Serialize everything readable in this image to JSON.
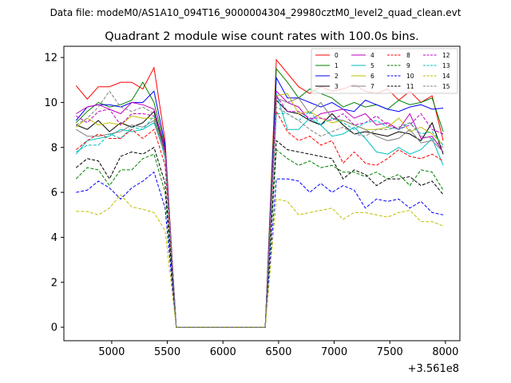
{
  "chart_data": {
    "type": "line",
    "suptitle": "Data file: modeM0/AS1A10_094T16_9000004304_29980cztM0_level2_quad_clean.evt",
    "title": "Quadrant 2 module wise count rates with 100.0s bins.",
    "xlabel": "",
    "ylabel": "",
    "x_offset_label": "+3.561e8",
    "xlim": [
      4570,
      8130
    ],
    "ylim": [
      -0.6,
      12.5
    ],
    "xticks": [
      5000,
      5500,
      6000,
      6500,
      7000,
      7500,
      8000
    ],
    "yticks": [
      0,
      2,
      4,
      6,
      8,
      10,
      12
    ],
    "legend_position": "top-right",
    "x": [
      4680,
      4780,
      4880,
      4980,
      5080,
      5180,
      5280,
      5380,
      5480,
      5580,
      5680,
      5780,
      5880,
      5980,
      6080,
      6180,
      6280,
      6380,
      6480,
      6580,
      6680,
      6780,
      6880,
      6980,
      7080,
      7180,
      7280,
      7380,
      7480,
      7580,
      7680,
      7780,
      7880,
      7980
    ],
    "series": [
      {
        "name": "0",
        "color": "#ff0000",
        "dash": "solid",
        "values": [
          10.75,
          10.15,
          10.7,
          10.7,
          10.9,
          10.9,
          10.6,
          11.55,
          8.3,
          0,
          0,
          0,
          0,
          0,
          0,
          0,
          0,
          0,
          11.9,
          11.3,
          10.7,
          10.4,
          10.7,
          10.5,
          10.6,
          10.8,
          10.5,
          10.4,
          10.6,
          10.1,
          10.5,
          10.0,
          10.3,
          8.3
        ]
      },
      {
        "name": "1",
        "color": "#008000",
        "dash": "solid",
        "values": [
          9.1,
          9.6,
          10.0,
          9.8,
          9.9,
          10.1,
          10.9,
          10.0,
          8.0,
          0,
          0,
          0,
          0,
          0,
          0,
          0,
          0,
          0,
          11.5,
          10.9,
          10.2,
          10.6,
          10.4,
          10.2,
          9.8,
          10.0,
          9.8,
          9.9,
          9.7,
          10.1,
          9.9,
          10.0,
          10.2,
          8.7
        ]
      },
      {
        "name": "2",
        "color": "#0000ff",
        "dash": "solid",
        "values": [
          9.2,
          9.8,
          9.9,
          9.9,
          9.8,
          10.0,
          10.0,
          10.5,
          8.1,
          0,
          0,
          0,
          0,
          0,
          0,
          0,
          0,
          0,
          11.1,
          10.2,
          10.2,
          10.0,
          9.8,
          10.0,
          9.7,
          9.6,
          10.1,
          9.9,
          9.7,
          9.6,
          9.8,
          9.9,
          9.7,
          9.75
        ]
      },
      {
        "name": "3",
        "color": "#000000",
        "dash": "solid",
        "values": [
          9.0,
          8.8,
          9.2,
          8.7,
          9.1,
          8.9,
          9.1,
          9.6,
          7.8,
          0,
          0,
          0,
          0,
          0,
          0,
          0,
          0,
          0,
          10.1,
          9.6,
          9.5,
          9.2,
          9.0,
          9.5,
          9.0,
          8.6,
          8.7,
          8.6,
          8.5,
          8.7,
          8.6,
          8.3,
          9.1,
          7.7
        ]
      },
      {
        "name": "4",
        "color": "#bf00bf",
        "dash": "solid",
        "values": [
          9.5,
          9.8,
          9.9,
          9.7,
          9.5,
          10.0,
          9.9,
          9.7,
          7.9,
          0,
          0,
          0,
          0,
          0,
          0,
          0,
          0,
          0,
          10.5,
          10.0,
          9.8,
          9.2,
          9.5,
          9.6,
          9.7,
          9.3,
          9.5,
          9.0,
          9.1,
          8.8,
          9.5,
          8.4,
          8.5,
          7.8
        ]
      },
      {
        "name": "5",
        "color": "#00bfbf",
        "dash": "solid",
        "values": [
          7.7,
          8.3,
          8.4,
          8.5,
          8.8,
          8.7,
          8.8,
          9.1,
          7.7,
          0,
          0,
          0,
          0,
          0,
          0,
          0,
          0,
          0,
          10.4,
          8.8,
          8.8,
          9.3,
          9.0,
          8.5,
          8.6,
          8.9,
          8.4,
          7.8,
          7.7,
          8.0,
          7.7,
          7.9,
          8.4,
          7.2
        ]
      },
      {
        "name": "6",
        "color": "#bfbf00",
        "dash": "solid",
        "values": [
          8.9,
          9.3,
          9.0,
          9.1,
          9.0,
          9.4,
          9.3,
          9.3,
          7.7,
          0,
          0,
          0,
          0,
          0,
          0,
          0,
          0,
          0,
          10.3,
          10.4,
          9.5,
          9.6,
          9.3,
          9.1,
          9.2,
          9.0,
          8.8,
          8.8,
          8.9,
          9.3,
          8.7,
          8.9,
          8.6,
          8.1
        ]
      },
      {
        "name": "7",
        "color": "#808080",
        "dash": "solid",
        "values": [
          8.8,
          8.5,
          8.5,
          8.6,
          8.7,
          9.0,
          8.9,
          9.2,
          7.6,
          0,
          0,
          0,
          0,
          0,
          0,
          0,
          0,
          0,
          10.2,
          10.0,
          10.2,
          9.5,
          10.0,
          9.3,
          9.2,
          9.0,
          8.8,
          8.5,
          8.3,
          8.4,
          8.8,
          8.2,
          8.3,
          7.8
        ]
      },
      {
        "name": "8",
        "color": "#ff0000",
        "dash": "dashed",
        "values": [
          7.9,
          8.3,
          8.6,
          8.4,
          8.4,
          8.8,
          8.4,
          8.8,
          7.2,
          0,
          0,
          0,
          0,
          0,
          0,
          0,
          0,
          0,
          9.6,
          8.7,
          8.3,
          8.5,
          8.1,
          8.3,
          7.3,
          7.8,
          7.3,
          7.2,
          7.5,
          7.9,
          7.6,
          7.5,
          7.7,
          7.4
        ]
      },
      {
        "name": "9",
        "color": "#008000",
        "dash": "dashed",
        "values": [
          6.6,
          7.1,
          7.0,
          6.3,
          7.0,
          7.0,
          7.5,
          7.7,
          6.0,
          0,
          0,
          0,
          0,
          0,
          0,
          0,
          0,
          0,
          7.9,
          7.5,
          7.2,
          7.4,
          7.1,
          7.2,
          6.9,
          6.9,
          6.7,
          6.9,
          6.6,
          6.8,
          6.3,
          7.0,
          6.9,
          6.1
        ]
      },
      {
        "name": "10",
        "color": "#0000ff",
        "dash": "dashed",
        "values": [
          6.0,
          6.1,
          6.5,
          6.2,
          5.7,
          6.2,
          6.5,
          6.9,
          5.3,
          0,
          0,
          0,
          0,
          0,
          0,
          0,
          0,
          0,
          6.6,
          6.6,
          6.5,
          6.0,
          6.4,
          6.0,
          6.3,
          6.1,
          5.3,
          5.7,
          5.6,
          5.7,
          5.3,
          5.6,
          5.1,
          5.0
        ]
      },
      {
        "name": "11",
        "color": "#000000",
        "dash": "dashed",
        "values": [
          7.1,
          7.5,
          7.4,
          6.6,
          7.6,
          7.8,
          7.7,
          8.0,
          6.4,
          0,
          0,
          0,
          0,
          0,
          0,
          0,
          0,
          0,
          8.3,
          7.9,
          7.8,
          7.7,
          7.6,
          7.5,
          6.6,
          7.0,
          6.8,
          6.3,
          6.6,
          6.6,
          6.7,
          6.3,
          6.5,
          5.9
        ]
      },
      {
        "name": "12",
        "color": "#bf00bf",
        "dash": "dashed",
        "values": [
          9.4,
          9.1,
          9.6,
          9.7,
          9.0,
          9.5,
          9.5,
          9.4,
          7.8,
          0,
          0,
          0,
          0,
          0,
          0,
          0,
          0,
          0,
          10.3,
          9.6,
          9.6,
          9.3,
          9.3,
          9.2,
          9.5,
          9.0,
          9.1,
          9.4,
          9.0,
          8.8,
          9.0,
          9.5,
          8.8,
          8.6
        ]
      },
      {
        "name": "13",
        "color": "#00bfbf",
        "dash": "dashed",
        "values": [
          7.8,
          8.1,
          8.1,
          8.6,
          8.4,
          8.9,
          8.8,
          9.4,
          7.5,
          0,
          0,
          0,
          0,
          0,
          0,
          0,
          0,
          0,
          9.5,
          9.5,
          9.2,
          9.6,
          9.0,
          9.3,
          9.1,
          8.8,
          9.1,
          9.2,
          8.9,
          8.8,
          9.1,
          8.6,
          8.7,
          8.1
        ]
      },
      {
        "name": "14",
        "color": "#bfbf00",
        "dash": "dashed",
        "values": [
          5.15,
          5.15,
          5.0,
          5.3,
          5.9,
          5.35,
          5.25,
          5.1,
          4.3,
          0,
          0,
          0,
          0,
          0,
          0,
          0,
          0,
          0,
          5.7,
          5.6,
          5.0,
          5.1,
          5.2,
          5.3,
          4.8,
          5.1,
          5.1,
          5.0,
          4.9,
          5.1,
          5.2,
          4.7,
          4.7,
          4.5
        ]
      },
      {
        "name": "15",
        "color": "#808080",
        "dash": "dashed",
        "values": [
          9.0,
          9.3,
          9.8,
          10.5,
          9.8,
          9.6,
          9.8,
          9.5,
          7.7,
          0,
          0,
          0,
          0,
          0,
          0,
          0,
          0,
          0,
          9.8,
          9.5,
          9.2,
          8.8,
          8.5,
          8.7,
          8.9,
          8.6,
          8.5,
          8.8,
          8.8,
          8.9,
          9.1,
          8.5,
          8.4,
          8.0
        ]
      }
    ]
  }
}
